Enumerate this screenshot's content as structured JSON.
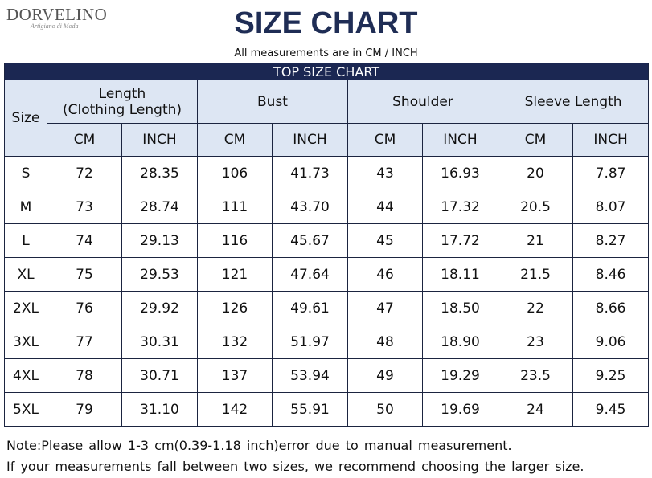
{
  "header": {
    "logo": "DORVELINO",
    "logo_tagline": "Artigiano di Moda",
    "title": "SIZE CHART",
    "subtitle": "All measurements are in CM / INCH"
  },
  "table": {
    "banner": "TOP SIZE CHART",
    "size_label": "Size",
    "groups": [
      [
        "Length",
        "(Clothing Length)"
      ],
      [
        "Bust"
      ],
      [
        "Shoulder"
      ],
      [
        "Sleeve Length"
      ]
    ],
    "units": [
      "CM",
      "INCH",
      "CM",
      "INCH",
      "CM",
      "INCH",
      "CM",
      "INCH"
    ],
    "rows": [
      [
        "S",
        "72",
        "28.35",
        "106",
        "41.73",
        "43",
        "16.93",
        "20",
        "7.87"
      ],
      [
        "M",
        "73",
        "28.74",
        "111",
        "43.70",
        "44",
        "17.32",
        "20.5",
        "8.07"
      ],
      [
        "L",
        "74",
        "29.13",
        "116",
        "45.67",
        "45",
        "17.72",
        "21",
        "8.27"
      ],
      [
        "XL",
        "75",
        "29.53",
        "121",
        "47.64",
        "46",
        "18.11",
        "21.5",
        "8.46"
      ],
      [
        "2XL",
        "76",
        "29.92",
        "126",
        "49.61",
        "47",
        "18.50",
        "22",
        "8.66"
      ],
      [
        "3XL",
        "77",
        "30.31",
        "132",
        "51.97",
        "48",
        "18.90",
        "23",
        "9.06"
      ],
      [
        "4XL",
        "78",
        "30.71",
        "137",
        "53.94",
        "49",
        "19.29",
        "23.5",
        "9.25"
      ],
      [
        "5XL",
        "79",
        "31.10",
        "142",
        "55.91",
        "50",
        "19.69",
        "24",
        "9.45"
      ]
    ]
  },
  "notes": [
    "Note:Please allow 1-3 cm(0.39-1.18 inch)error due to manual measurement.",
    "If your measurements fall between two sizes, we recommend choosing the larger size."
  ]
}
